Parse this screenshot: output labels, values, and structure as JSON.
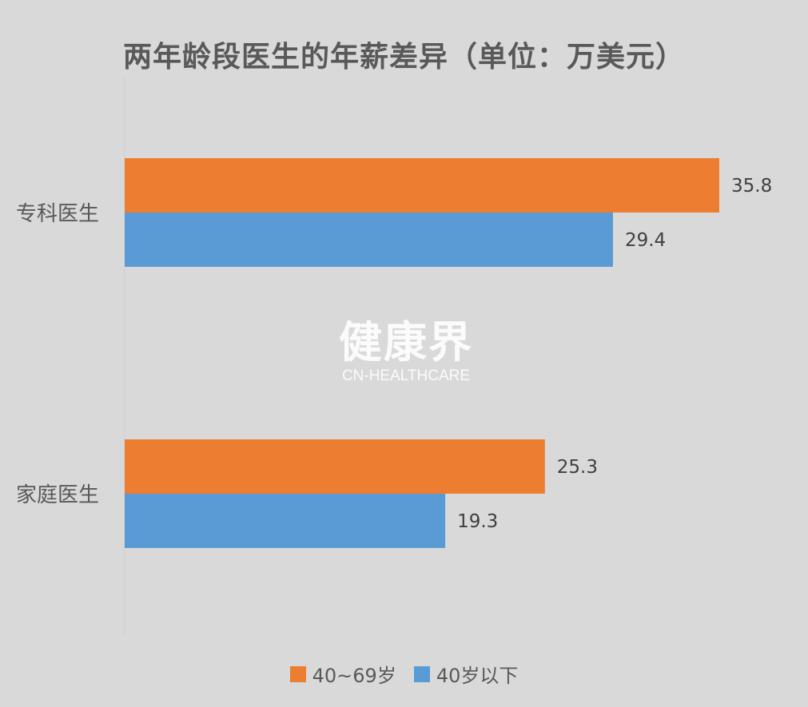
{
  "chart_data": {
    "type": "bar",
    "orientation": "horizontal",
    "title": "两年龄段医生的年薪差异（单位：万美元）",
    "categories": [
      "专科医生",
      "家庭医生"
    ],
    "series": [
      {
        "name": "40~69岁",
        "values": [
          35.8,
          25.3
        ],
        "color": "#ed7d31"
      },
      {
        "name": "40岁以下",
        "values": [
          29.4,
          19.3
        ],
        "color": "#5b9bd5"
      }
    ],
    "xlim": [
      0,
      40
    ],
    "grid": false,
    "legend_position": "bottom"
  },
  "watermark": {
    "cn": "健康界",
    "en": "CN-HEALTHCARE"
  }
}
